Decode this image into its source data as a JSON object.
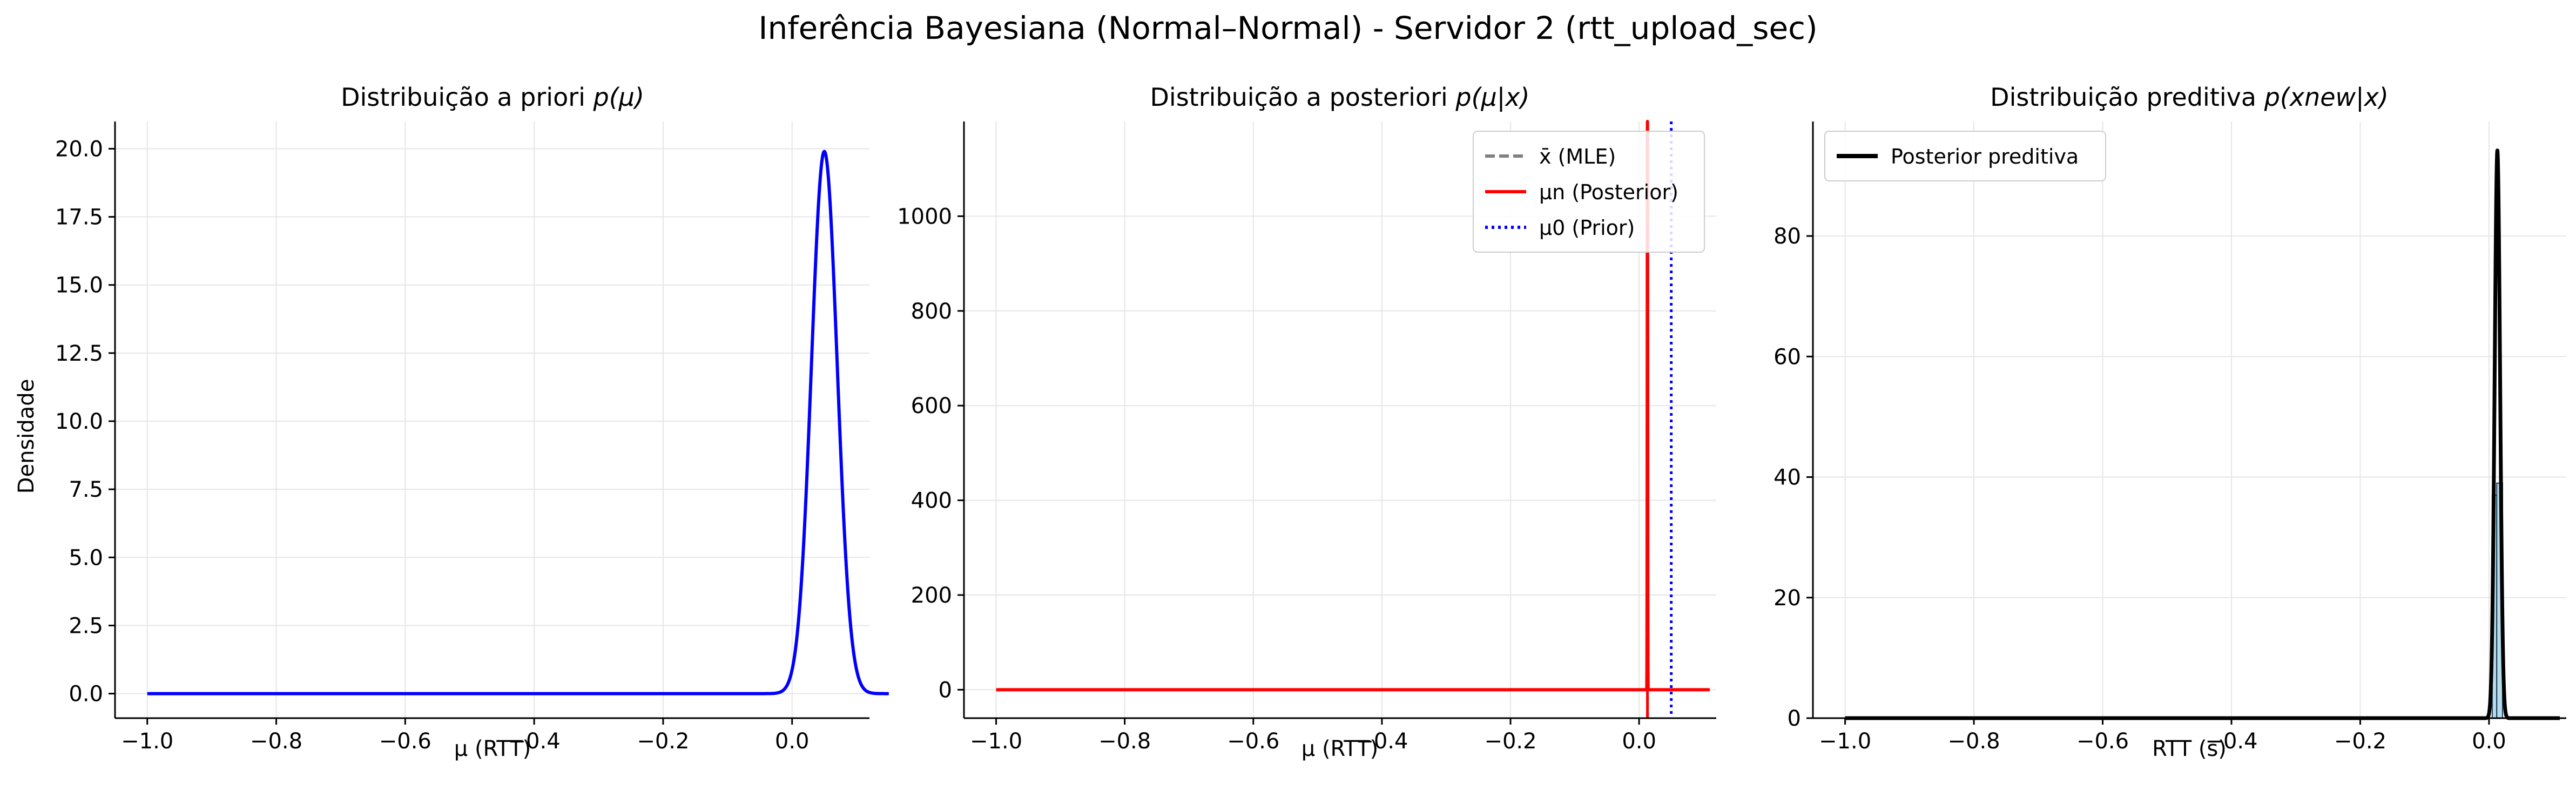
{
  "figure": {
    "suptitle": "Inferência Bayesiana (Normal–Normal) - Servidor 2 (rtt_upload_sec)",
    "colors": {
      "prior": "#0000ff",
      "posterior": "#ff0000",
      "mle": "#808080",
      "predictive": "#000000",
      "histogram": "#add8e6"
    }
  },
  "panels": [
    {
      "title": "Distribuição a priori",
      "title_math": "p(μ)",
      "xlabel": "μ (RTT)",
      "ylabel": "Densidade",
      "xticks": [
        "−1.0",
        "−0.8",
        "−0.6",
        "−0.4",
        "−0.2",
        "0.0"
      ],
      "yticks": [
        "0.0",
        "2.5",
        "5.0",
        "7.5",
        "10.0",
        "12.5",
        "15.0",
        "17.5",
        "20.0"
      ]
    },
    {
      "title": "Distribuição a posteriori",
      "title_math": "p(μ|x)",
      "xlabel": "μ (RTT)",
      "xticks": [
        "−1.0",
        "−0.8",
        "−0.6",
        "−0.4",
        "−0.2",
        "0.0"
      ],
      "yticks": [
        "0",
        "200",
        "400",
        "600",
        "800",
        "1000"
      ],
      "legend": [
        "x̄ (MLE)",
        "μn (Posterior)",
        "μ0 (Prior)"
      ]
    },
    {
      "title": "Distribuição preditiva",
      "title_math": "p(xnew|x)",
      "xlabel": "RTT (s)",
      "xticks": [
        "−1.0",
        "−0.8",
        "−0.6",
        "−0.4",
        "−0.2",
        "0.0"
      ],
      "yticks": [
        "0",
        "20",
        "40",
        "60",
        "80"
      ],
      "legend": [
        "Posterior preditiva"
      ]
    }
  ],
  "chart_data": [
    {
      "type": "line",
      "series": [
        {
          "name": "",
          "distribution": "normal",
          "mean": 0.05,
          "sd": 0.02,
          "peak": 19.9
        }
      ],
      "xlim": [
        -1.05,
        0.12
      ],
      "ylim": [
        -0.9,
        21.0
      ],
      "x_range": [
        -1.0,
        0.11
      ],
      "grid": true
    },
    {
      "type": "line",
      "series": [
        {
          "name": "μn (Posterior)",
          "distribution": "normal",
          "mean": 0.013,
          "sd": 0.00033,
          "peak": 1200
        },
        {
          "name": "x̄ (MLE)",
          "vline": 0.013
        },
        {
          "name": "μn (Posterior)",
          "vline": 0.013
        },
        {
          "name": "μ0 (Prior)",
          "vline": 0.05
        }
      ],
      "xlim": [
        -1.05,
        0.12
      ],
      "ylim": [
        -60,
        1200
      ],
      "x_range": [
        -1.0,
        0.11
      ],
      "grid": true,
      "legend_position": "upper-right"
    },
    {
      "type": "line",
      "series": [
        {
          "name": "Posterior preditiva",
          "distribution": "normal",
          "mean": 0.013,
          "sd": 0.0042,
          "peak": 94.2
        }
      ],
      "histogram": [
        {
          "x0": 0.005,
          "x1": 0.012,
          "value": 37
        },
        {
          "x0": 0.012,
          "x1": 0.021,
          "value": 39
        }
      ],
      "xlim": [
        -1.05,
        0.12
      ],
      "ylim": [
        0,
        99
      ],
      "x_range": [
        -1.0,
        0.11
      ],
      "grid": true,
      "legend_position": "upper-left"
    }
  ]
}
